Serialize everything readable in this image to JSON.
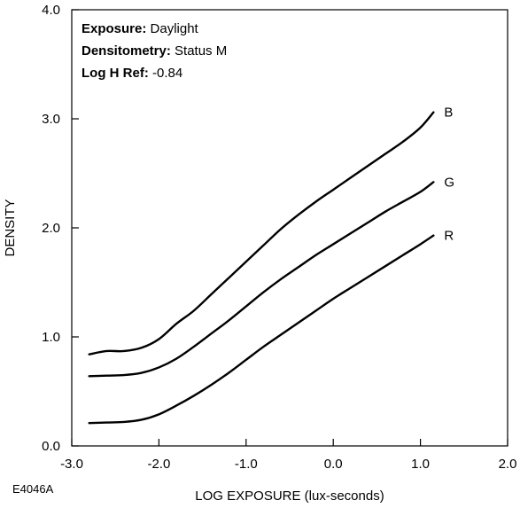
{
  "figure_code": "E4046A",
  "chart_data": {
    "type": "line",
    "title": "",
    "xlabel": "LOG EXPOSURE (lux-seconds)",
    "ylabel": "DENSITY",
    "xlim": [
      -3.0,
      2.0
    ],
    "ylim": [
      0.0,
      4.0
    ],
    "x_ticks": [
      "-3.0",
      "-2.0",
      "-1.0",
      "0.0",
      "1.0",
      "2.0"
    ],
    "x_tick_values": [
      -3.0,
      -2.0,
      -1.0,
      0.0,
      1.0,
      2.0
    ],
    "y_ticks": [
      "0.0",
      "1.0",
      "2.0",
      "3.0",
      "4.0"
    ],
    "y_tick_values": [
      0.0,
      1.0,
      2.0,
      3.0,
      4.0
    ],
    "grid": false,
    "annotations": [
      {
        "label": "Exposure:",
        "value": "Daylight"
      },
      {
        "label": "Densitometry:",
        "value": "Status M"
      },
      {
        "label": "Log H Ref:",
        "value": "-0.84"
      }
    ],
    "series": [
      {
        "name": "B",
        "x": [
          -2.8,
          -2.6,
          -2.4,
          -2.2,
          -2.0,
          -1.8,
          -1.6,
          -1.4,
          -1.2,
          -1.0,
          -0.8,
          -0.6,
          -0.4,
          -0.2,
          0.0,
          0.2,
          0.4,
          0.6,
          0.8,
          1.0,
          1.15
        ],
        "y": [
          0.84,
          0.87,
          0.87,
          0.9,
          0.98,
          1.12,
          1.24,
          1.39,
          1.54,
          1.69,
          1.84,
          1.99,
          2.12,
          2.24,
          2.35,
          2.46,
          2.57,
          2.68,
          2.79,
          2.92,
          3.06
        ]
      },
      {
        "name": "G",
        "x": [
          -2.8,
          -2.6,
          -2.4,
          -2.2,
          -2.0,
          -1.8,
          -1.6,
          -1.4,
          -1.2,
          -1.0,
          -0.8,
          -0.6,
          -0.4,
          -0.2,
          0.0,
          0.2,
          0.4,
          0.6,
          0.8,
          1.0,
          1.15
        ],
        "y": [
          0.64,
          0.645,
          0.65,
          0.67,
          0.72,
          0.8,
          0.91,
          1.03,
          1.15,
          1.28,
          1.41,
          1.53,
          1.64,
          1.75,
          1.85,
          1.95,
          2.05,
          2.15,
          2.24,
          2.33,
          2.42
        ]
      },
      {
        "name": "R",
        "x": [
          -2.8,
          -2.6,
          -2.4,
          -2.2,
          -2.0,
          -1.8,
          -1.6,
          -1.4,
          -1.2,
          -1.0,
          -0.8,
          -0.6,
          -0.4,
          -0.2,
          0.0,
          0.2,
          0.4,
          0.6,
          0.8,
          1.0,
          1.15
        ],
        "y": [
          0.21,
          0.215,
          0.22,
          0.24,
          0.29,
          0.37,
          0.46,
          0.56,
          0.67,
          0.79,
          0.91,
          1.02,
          1.13,
          1.24,
          1.35,
          1.45,
          1.55,
          1.65,
          1.75,
          1.85,
          1.93
        ]
      }
    ]
  }
}
